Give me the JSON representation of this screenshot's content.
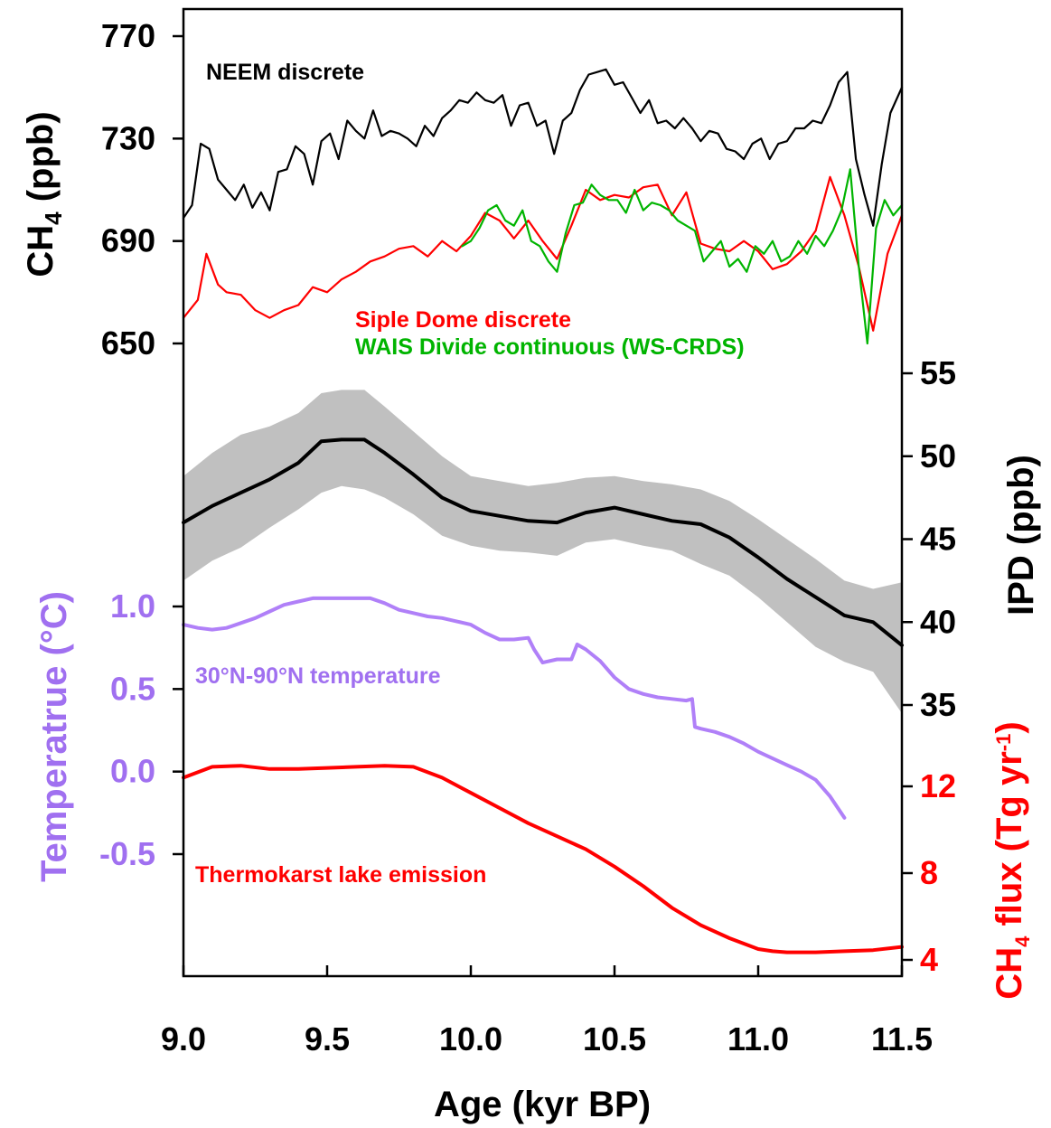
{
  "chart_data": {
    "type": "line",
    "xlabel": "Age (kyr BP)",
    "xlim": [
      9.0,
      11.5
    ],
    "xticks": [
      "9.0",
      "9.5",
      "10.0",
      "10.5",
      "11.0",
      "11.5"
    ],
    "colors": {
      "neem": "#000000",
      "siple": "#ff0000",
      "wais": "#00b400",
      "ipd": "#000000",
      "ipd_band": "#c0c0c0",
      "temp": "#b080f8",
      "flux": "#ff0000",
      "temp_axis": "#a070f0",
      "flux_axis": "#ff0000"
    },
    "axes": {
      "ch4": {
        "label_main": "CH",
        "label_sub": "4",
        "label_tail": " (ppb)",
        "ticks": [
          "770",
          "730",
          "690",
          "650"
        ],
        "range": [
          650,
          770
        ]
      },
      "ipd": {
        "label": "IPD (ppb)",
        "ticks": [
          "55",
          "50",
          "45",
          "40",
          "35"
        ],
        "range": [
          35,
          55
        ]
      },
      "temp": {
        "label": "Temperatrue (°C)",
        "ticks": [
          "1.0",
          "0.5",
          "0.0",
          "-0.5"
        ],
        "range": [
          -0.5,
          1.0
        ]
      },
      "flux": {
        "label_main": "CH",
        "label_sub": "4",
        "label_tail": " flux (Tg yr",
        "label_sup": "-1",
        "label_close": ")",
        "ticks": [
          "12",
          "8",
          "4"
        ],
        "range": [
          4,
          12
        ]
      }
    },
    "series": [
      {
        "name": "NEEM discrete",
        "axis": "ch4",
        "x": [
          9.0,
          9.03,
          9.06,
          9.09,
          9.12,
          9.15,
          9.18,
          9.21,
          9.24,
          9.27,
          9.3,
          9.33,
          9.36,
          9.39,
          9.42,
          9.45,
          9.48,
          9.51,
          9.54,
          9.57,
          9.6,
          9.63,
          9.66,
          9.69,
          9.72,
          9.75,
          9.78,
          9.81,
          9.84,
          9.87,
          9.9,
          9.93,
          9.96,
          9.99,
          10.02,
          10.05,
          10.08,
          10.11,
          10.14,
          10.17,
          10.2,
          10.23,
          10.26,
          10.29,
          10.32,
          10.35,
          10.38,
          10.41,
          10.44,
          10.47,
          10.5,
          10.53,
          10.56,
          10.59,
          10.62,
          10.65,
          10.68,
          10.71,
          10.74,
          10.77,
          10.8,
          10.83,
          10.86,
          10.89,
          10.92,
          10.95,
          10.98,
          11.01,
          11.04,
          11.07,
          11.1,
          11.13,
          11.16,
          11.19,
          11.22,
          11.25,
          11.28,
          11.31,
          11.34,
          11.37,
          11.4,
          11.43,
          11.46,
          11.5
        ],
        "y": [
          699,
          704,
          728,
          726,
          714,
          710,
          706,
          712,
          703,
          709,
          702,
          717,
          718,
          727,
          724,
          712,
          729,
          732,
          722,
          737,
          733,
          730,
          741,
          731,
          733,
          732,
          730,
          727,
          735,
          731,
          738,
          741,
          745,
          744,
          748,
          745,
          744,
          747,
          735,
          743,
          744,
          735,
          737,
          724,
          737,
          740,
          749,
          755,
          756,
          757,
          751,
          752,
          746,
          740,
          745,
          736,
          737,
          734,
          738,
          734,
          729,
          733,
          732,
          726,
          725,
          722,
          728,
          730,
          722,
          728,
          729,
          734,
          734,
          737,
          736,
          743,
          752,
          756,
          722,
          708,
          696,
          720,
          740,
          750
        ]
      },
      {
        "name": "Siple Dome discrete",
        "axis": "ch4",
        "x": [
          9.0,
          9.05,
          9.08,
          9.12,
          9.15,
          9.2,
          9.25,
          9.3,
          9.35,
          9.4,
          9.45,
          9.5,
          9.55,
          9.6,
          9.65,
          9.7,
          9.75,
          9.8,
          9.85,
          9.9,
          9.95,
          10.0,
          10.05,
          10.1,
          10.15,
          10.2,
          10.25,
          10.3,
          10.35,
          10.4,
          10.45,
          10.5,
          10.55,
          10.6,
          10.65,
          10.7,
          10.75,
          10.8,
          10.85,
          10.9,
          10.95,
          11.0,
          11.05,
          11.1,
          11.15,
          11.2,
          11.25,
          11.3,
          11.35,
          11.4,
          11.45,
          11.5
        ],
        "y": [
          660,
          667,
          685,
          673,
          670,
          669,
          663,
          660,
          663,
          665,
          672,
          670,
          675,
          678,
          682,
          684,
          687,
          688,
          684,
          690,
          686,
          692,
          701,
          698,
          691,
          698,
          690,
          683,
          696,
          710,
          706,
          708,
          707,
          711,
          712,
          700,
          709,
          689,
          687,
          686,
          690,
          686,
          679,
          681,
          686,
          694,
          715,
          700,
          680,
          655,
          685,
          700
        ]
      },
      {
        "name": "WAIS Divide continuous (WS-CRDS)",
        "axis": "ch4",
        "x": [
          9.97,
          10.0,
          10.03,
          10.06,
          10.09,
          10.12,
          10.15,
          10.18,
          10.21,
          10.24,
          10.27,
          10.3,
          10.33,
          10.36,
          10.39,
          10.42,
          10.45,
          10.48,
          10.51,
          10.54,
          10.57,
          10.6,
          10.63,
          10.66,
          10.69,
          10.72,
          10.75,
          10.78,
          10.81,
          10.84,
          10.87,
          10.9,
          10.93,
          10.96,
          10.99,
          11.02,
          11.05,
          11.08,
          11.11,
          11.14,
          11.17,
          11.2,
          11.23,
          11.26,
          11.29,
          11.32,
          11.35,
          11.38,
          11.41,
          11.44,
          11.47,
          11.5
        ],
        "y": [
          688,
          690,
          695,
          702,
          704,
          698,
          696,
          702,
          690,
          688,
          682,
          678,
          693,
          704,
          705,
          712,
          708,
          706,
          706,
          701,
          710,
          702,
          705,
          704,
          702,
          698,
          696,
          694,
          682,
          686,
          690,
          680,
          683,
          678,
          688,
          685,
          690,
          682,
          684,
          690,
          685,
          692,
          688,
          694,
          702,
          718,
          680,
          650,
          695,
          706,
          700,
          704
        ]
      },
      {
        "name": "IPD",
        "axis": "ipd",
        "x": [
          9.0,
          9.1,
          9.2,
          9.3,
          9.4,
          9.48,
          9.55,
          9.63,
          9.7,
          9.8,
          9.9,
          10.0,
          10.1,
          10.2,
          10.3,
          10.4,
          10.5,
          10.6,
          10.7,
          10.8,
          10.9,
          11.0,
          11.1,
          11.2,
          11.3,
          11.4,
          11.5
        ],
        "y": [
          46.0,
          47.0,
          47.8,
          48.6,
          49.6,
          50.9,
          51.0,
          51.0,
          50.2,
          48.9,
          47.5,
          46.7,
          46.4,
          46.1,
          46.0,
          46.6,
          46.9,
          46.5,
          46.1,
          45.9,
          45.1,
          43.9,
          42.6,
          41.5,
          40.4,
          40.0,
          38.6
        ],
        "lower": [
          42.5,
          43.7,
          44.5,
          45.7,
          46.8,
          47.8,
          48.2,
          48.0,
          47.5,
          46.5,
          45.2,
          44.6,
          44.3,
          44.2,
          44.0,
          44.8,
          45.0,
          44.6,
          44.3,
          43.5,
          42.8,
          41.5,
          40.0,
          38.5,
          37.6,
          37.0,
          34.5
        ],
        "upper": [
          48.8,
          50.2,
          51.3,
          51.8,
          52.6,
          53.8,
          54.0,
          54.0,
          53.0,
          51.5,
          50.0,
          48.8,
          48.5,
          48.2,
          48.4,
          48.7,
          48.8,
          48.5,
          48.3,
          48.0,
          47.3,
          46.2,
          45.0,
          43.8,
          42.5,
          42.0,
          42.4
        ]
      },
      {
        "name": "30°N-90°N temperature",
        "axis": "temp",
        "x": [
          9.0,
          9.05,
          9.1,
          9.15,
          9.2,
          9.25,
          9.3,
          9.35,
          9.4,
          9.45,
          9.5,
          9.55,
          9.6,
          9.65,
          9.7,
          9.75,
          9.8,
          9.85,
          9.9,
          9.95,
          10.0,
          10.05,
          10.1,
          10.15,
          10.2,
          10.22,
          10.25,
          10.3,
          10.35,
          10.37,
          10.4,
          10.45,
          10.5,
          10.55,
          10.6,
          10.65,
          10.7,
          10.75,
          10.77,
          10.78,
          10.8,
          10.85,
          10.9,
          10.95,
          11.0,
          11.05,
          11.1,
          11.15,
          11.2,
          11.25,
          11.3
        ],
        "y": [
          0.89,
          0.87,
          0.86,
          0.87,
          0.9,
          0.93,
          0.97,
          1.01,
          1.03,
          1.05,
          1.05,
          1.05,
          1.05,
          1.05,
          1.02,
          0.98,
          0.96,
          0.94,
          0.93,
          0.91,
          0.89,
          0.84,
          0.8,
          0.8,
          0.81,
          0.74,
          0.66,
          0.68,
          0.68,
          0.77,
          0.74,
          0.67,
          0.57,
          0.5,
          0.47,
          0.45,
          0.44,
          0.43,
          0.44,
          0.27,
          0.26,
          0.24,
          0.21,
          0.17,
          0.12,
          0.08,
          0.04,
          0.0,
          -0.05,
          -0.15,
          -0.28
        ]
      },
      {
        "name": "Thermokarst lake emission",
        "axis": "flux",
        "x": [
          9.0,
          9.1,
          9.2,
          9.3,
          9.4,
          9.5,
          9.6,
          9.7,
          9.8,
          9.9,
          10.0,
          10.1,
          10.2,
          10.3,
          10.4,
          10.5,
          10.6,
          10.7,
          10.8,
          10.9,
          11.0,
          11.05,
          11.1,
          11.2,
          11.3,
          11.4,
          11.5
        ],
        "y": [
          12.4,
          12.9,
          12.95,
          12.8,
          12.8,
          12.85,
          12.9,
          12.95,
          12.9,
          12.4,
          11.7,
          11.0,
          10.3,
          9.7,
          9.1,
          8.3,
          7.4,
          6.4,
          5.6,
          5.0,
          4.5,
          4.4,
          4.35,
          4.35,
          4.4,
          4.45,
          4.6
        ]
      }
    ]
  }
}
